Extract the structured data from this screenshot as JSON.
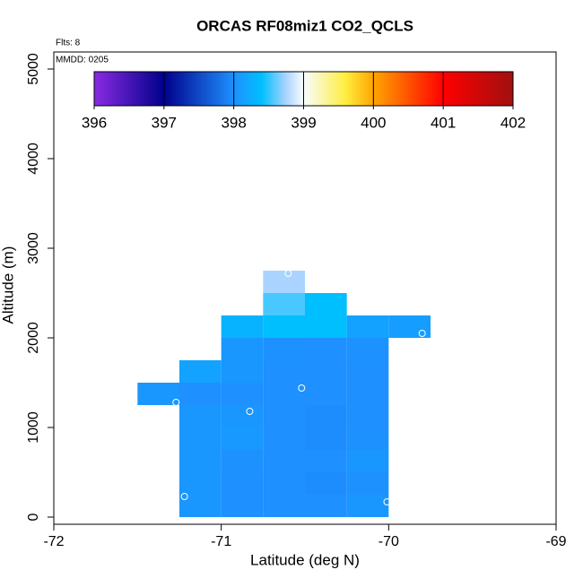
{
  "chart_data": {
    "type": "heatmap",
    "title": "ORCAS RF08miz1 CO2_QCLS",
    "annotations": [
      "Flts: 8",
      "MMDD: 0205"
    ],
    "x_label": "Latitude (deg N)",
    "y_label": "Altitude (m)",
    "xlim": [
      -72,
      -69
    ],
    "ylim": [
      -80,
      5190
    ],
    "xticks": [
      -72,
      -71,
      -70,
      -69
    ],
    "yticks": [
      0,
      1000,
      2000,
      3000,
      4000,
      5000
    ],
    "cell_width": 0.25,
    "cell_height": 250,
    "cells": {
      "x": [
        -71.25,
        -71,
        -70.75,
        -70.5,
        -70.25,
        -71.25,
        -71,
        -70.75,
        -70.5,
        -70.25,
        -71.25,
        -71,
        -70.75,
        -70.5,
        -70.25,
        -71.25,
        -71,
        -70.75,
        -70.5,
        -70.25,
        -71.25,
        -71,
        -70.75,
        -70.5,
        -70.25,
        -71.5,
        -71.25,
        -71,
        -70.75,
        -70.5,
        -70.25,
        -71.25,
        -71,
        -70.75,
        -70.5,
        -70.25,
        -71,
        -70.75,
        -70.5,
        -70.25,
        -71,
        -70.75,
        -70.5,
        -70.25,
        -70,
        -70.75,
        -70.5,
        -70.75
      ],
      "y": [
        0,
        0,
        0,
        0,
        0,
        250,
        250,
        250,
        250,
        250,
        500,
        500,
        500,
        500,
        500,
        750,
        750,
        750,
        750,
        750,
        1000,
        1000,
        1000,
        1000,
        1000,
        1250,
        1250,
        1250,
        1250,
        1250,
        1250,
        1500,
        1500,
        1500,
        1500,
        1500,
        1750,
        1750,
        1750,
        1750,
        2000,
        2000,
        2000,
        2000,
        2000,
        2250,
        2250,
        2500
      ],
      "values": [
        398.05,
        398.0,
        398.0,
        398.0,
        398.05,
        398.05,
        398.0,
        398.0,
        397.98,
        398.02,
        398.05,
        398.02,
        398.0,
        398.0,
        398.05,
        398.05,
        398.08,
        398.0,
        397.98,
        398.02,
        398.05,
        398.05,
        398.0,
        397.98,
        398.0,
        398.05,
        398.0,
        398.0,
        398.0,
        398.0,
        398.0,
        398.15,
        398.05,
        398.0,
        398.0,
        398.0,
        398.05,
        398.02,
        398.0,
        398.02,
        398.3,
        398.4,
        398.4,
        398.15,
        398.12,
        398.55,
        398.4,
        398.75
      ]
    },
    "points": {
      "x": [
        -71.27,
        -71.22,
        -70.83,
        -70.52,
        -70.6,
        -69.8,
        -70.01
      ],
      "y": [
        1280,
        230,
        1180,
        1440,
        2720,
        2050,
        170
      ]
    },
    "colorbar": {
      "range": [
        396,
        402
      ],
      "ticks": [
        396,
        397,
        398,
        399,
        400,
        401,
        402
      ],
      "stops": [
        396,
        397,
        398,
        398.4,
        398.75,
        399,
        399.6,
        400,
        401,
        402
      ],
      "colors": [
        "#8a2be2",
        "#00008b",
        "#1e90ff",
        "#00bfff",
        "#aad4ff",
        "#f8fcff",
        "#ffee40",
        "#ffa500",
        "#ff0000",
        "#a01010"
      ]
    }
  }
}
